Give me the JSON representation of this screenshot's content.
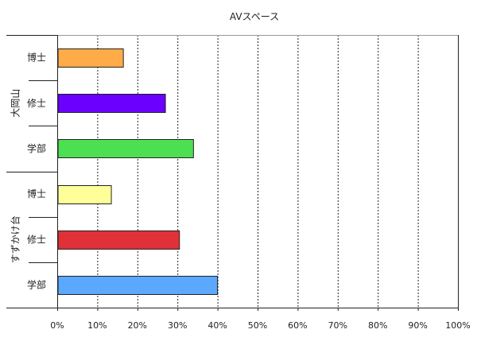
{
  "chart_data": {
    "type": "bar",
    "orientation": "horizontal",
    "title": "AVスペース",
    "xlabel": "",
    "ylabel": "",
    "xlim": [
      0,
      100
    ],
    "x_ticks": [
      "0%",
      "10%",
      "20%",
      "30%",
      "40%",
      "50%",
      "60%",
      "70%",
      "80%",
      "90%",
      "100%"
    ],
    "grid": "vertical-dotted",
    "groups": [
      {
        "label": "大岡山",
        "bars": [
          {
            "label": "博士",
            "value": 16.5,
            "color": "#ffab47"
          },
          {
            "label": "修士",
            "value": 27,
            "color": "#6b00ff"
          },
          {
            "label": "学部",
            "value": 34,
            "color": "#4cdf52"
          }
        ]
      },
      {
        "label": "すずかけ台",
        "bars": [
          {
            "label": "博士",
            "value": 13.5,
            "color": "#ffff99"
          },
          {
            "label": "修士",
            "value": 30.5,
            "color": "#e03038"
          },
          {
            "label": "学部",
            "value": 40,
            "color": "#5ca8ff"
          }
        ]
      }
    ]
  }
}
